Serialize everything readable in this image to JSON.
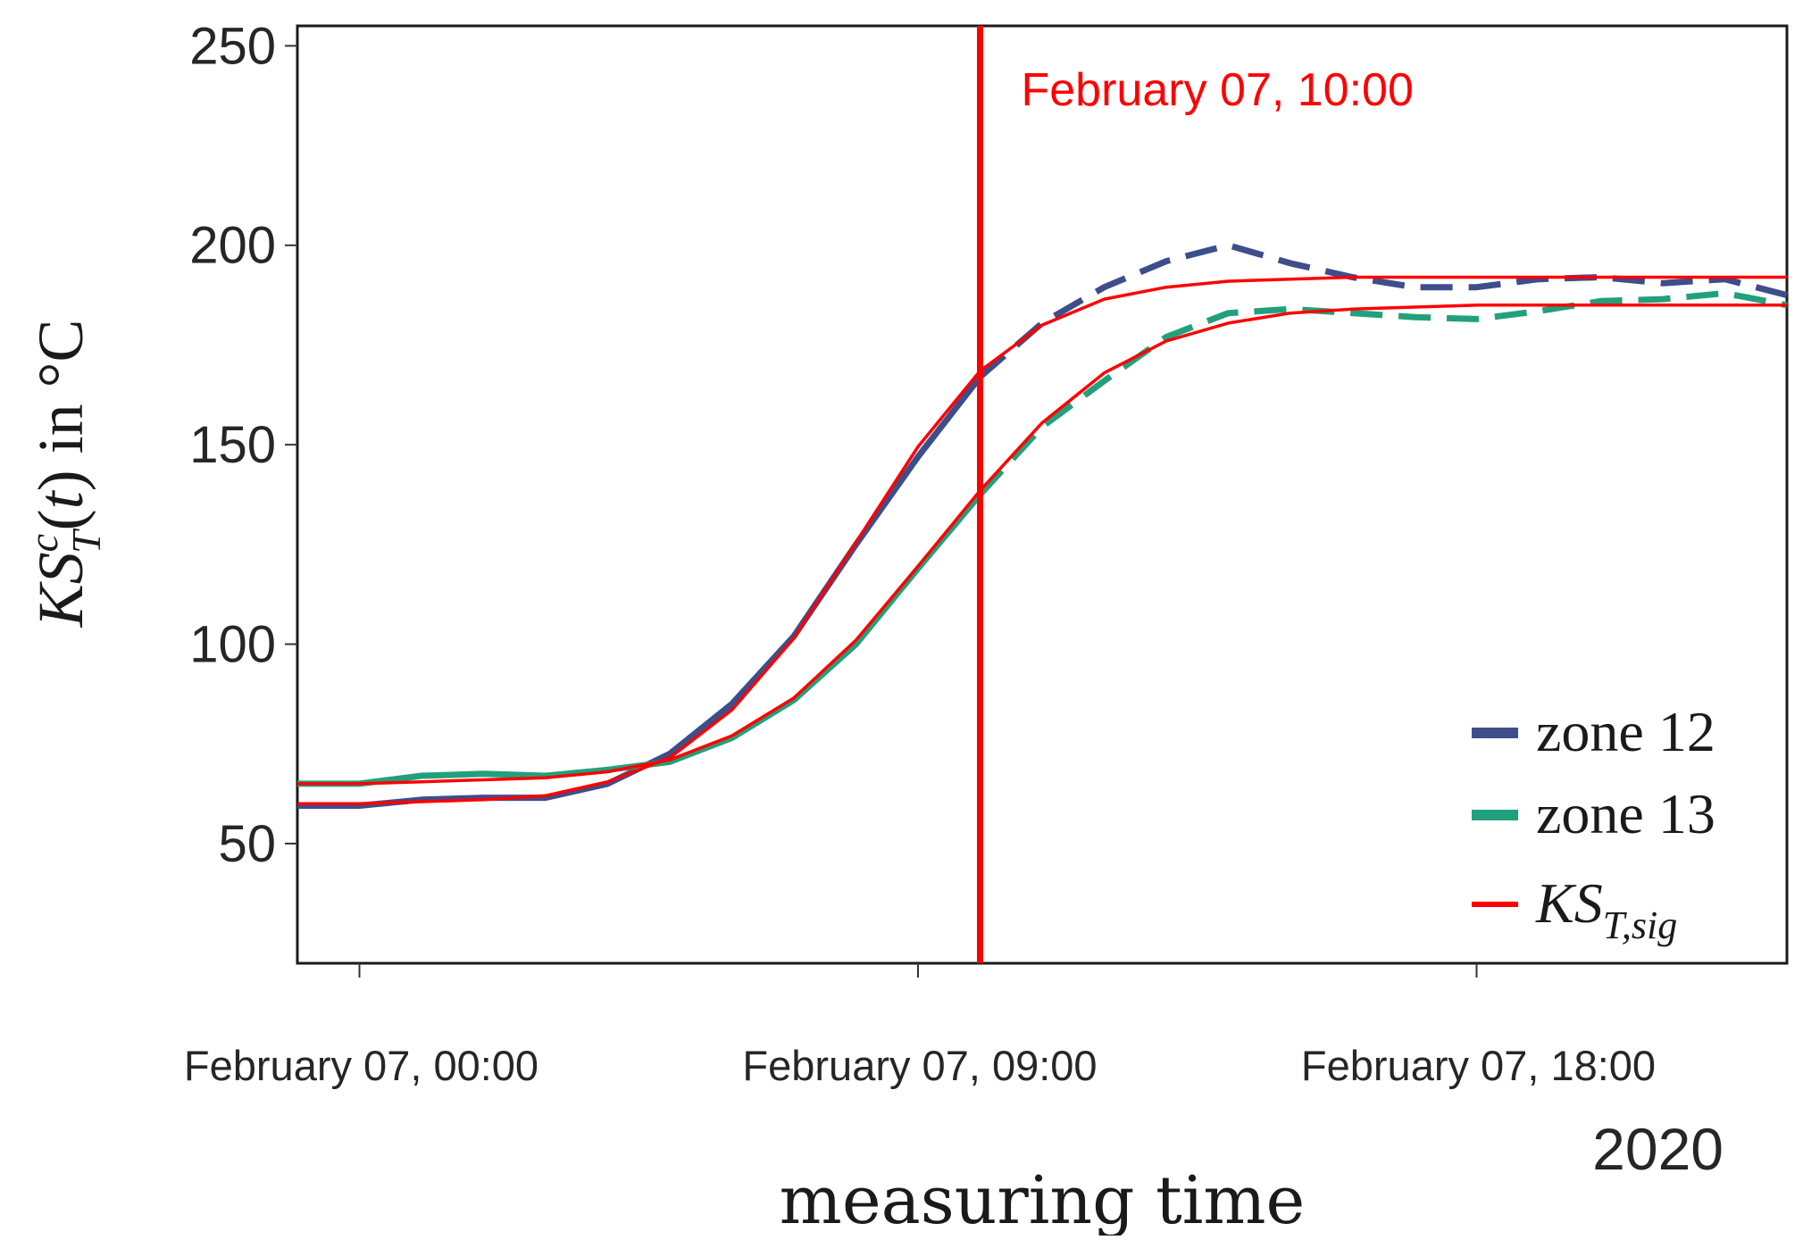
{
  "chart_data": {
    "type": "line",
    "title": "",
    "xlabel": "measuring time",
    "ylabel": "KS_T^c(t) in °C",
    "x_units": "hours from February 07, 00:00 (2020)",
    "xlim": [
      -1,
      23
    ],
    "ylim": [
      20,
      255
    ],
    "yticks": [
      50,
      100,
      150,
      200,
      250
    ],
    "xticks": [
      {
        "value": 0,
        "label": "February 07, 00:00"
      },
      {
        "value": 9,
        "label": "February 07, 09:00"
      },
      {
        "value": 18,
        "label": "February 07, 18:00"
      }
    ],
    "x_offset_label": "2020",
    "grid": false,
    "legend_position": "lower right",
    "annotation": {
      "label": "February 07, 10:00",
      "x": 10,
      "color": "#ff0000"
    },
    "colors": {
      "zone12": "#3d4e8a",
      "zone13": "#22a07c",
      "fit": "#ff0000",
      "annotation": "#ff0000"
    },
    "x": [
      -1,
      0,
      1,
      2,
      3,
      4,
      5,
      6,
      7,
      8,
      9,
      10,
      11,
      12,
      13,
      14,
      15,
      16,
      17,
      18,
      19,
      20,
      21,
      22,
      23
    ],
    "series": [
      {
        "name": "zone 12",
        "role": "measured",
        "color": "#3d4e8a",
        "values": [
          59.5,
          59.5,
          61,
          61.5,
          61.5,
          65,
          72.5,
          85,
          102,
          125,
          147,
          167,
          180.5,
          189.5,
          196,
          200,
          195.5,
          192,
          189.5,
          189.5,
          191.5,
          192,
          190.5,
          191.5,
          187.5
        ]
      },
      {
        "name": "zone 13",
        "role": "measured",
        "color": "#22a07c",
        "values": [
          65,
          65,
          67,
          67.5,
          67,
          68.5,
          70.5,
          76.5,
          86,
          100,
          119,
          137.5,
          154.5,
          166,
          177,
          183,
          184,
          183,
          182,
          181.5,
          183.5,
          186,
          186.5,
          188,
          185
        ]
      },
      {
        "name": "zone 12 fit",
        "role": "fit",
        "color": "#ff0000",
        "values": [
          60,
          60,
          60.5,
          61,
          62,
          65.5,
          71.5,
          83.5,
          101.5,
          125.5,
          149.5,
          168.5,
          180,
          186.5,
          189.5,
          191,
          191.5,
          192,
          192,
          192,
          192,
          192,
          192,
          192,
          192
        ]
      },
      {
        "name": "zone 13 fit",
        "role": "fit",
        "color": "#ff0000",
        "values": [
          65,
          65,
          65.5,
          66,
          66.5,
          68,
          71,
          77,
          86.5,
          101,
          119.5,
          138.5,
          155.5,
          168,
          176,
          180.5,
          183,
          184,
          184.5,
          185,
          185,
          185,
          185,
          185,
          185
        ]
      }
    ],
    "legend": [
      {
        "label": "zone 12",
        "style": "dashed",
        "color": "#3d4e8a"
      },
      {
        "label": "zone 13",
        "style": "dashed",
        "color": "#22a07c"
      },
      {
        "label": "KS_T,sig",
        "main": "KS",
        "sub": "T,sig",
        "style": "solid",
        "color": "#ff0000"
      }
    ]
  }
}
